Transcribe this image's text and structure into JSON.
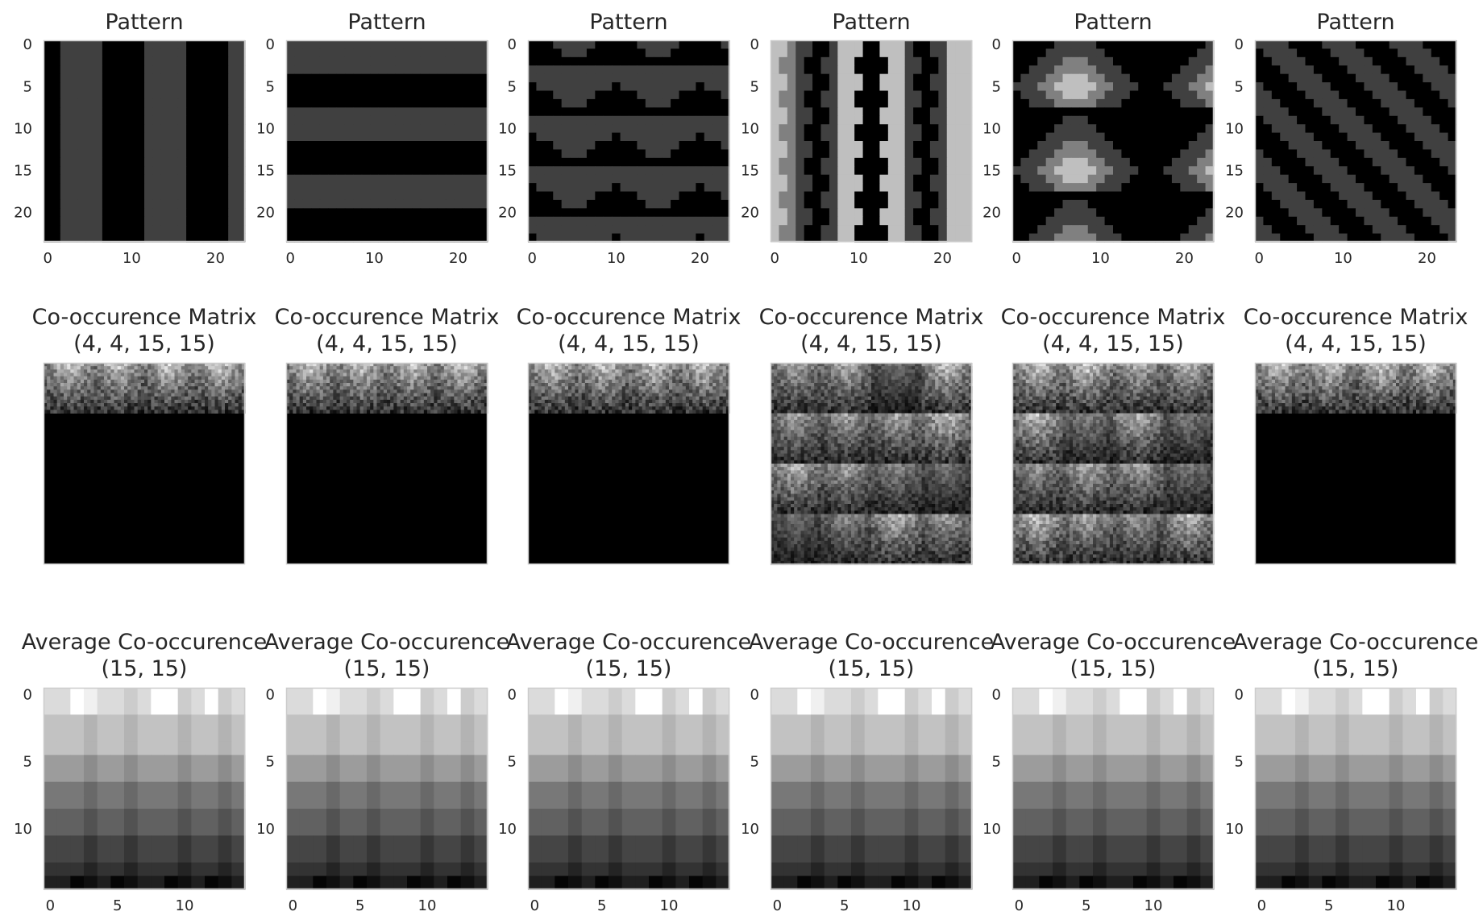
{
  "figure": {
    "rows": [
      {
        "titles": [
          [
            "Pattern"
          ],
          [
            "Pattern"
          ],
          [
            "Pattern"
          ],
          [
            "Pattern"
          ],
          [
            "Pattern"
          ],
          [
            "Pattern"
          ]
        ],
        "xticks": [
          [
            0,
            10,
            20
          ],
          [
            0,
            10,
            20
          ],
          [
            0,
            10,
            20
          ],
          [
            0,
            10,
            20
          ],
          [
            0,
            10,
            20
          ],
          [
            0,
            10,
            20
          ]
        ],
        "yticks": [
          [
            0,
            5,
            10,
            15,
            20
          ],
          [
            0,
            5,
            10,
            15,
            20
          ],
          [
            0,
            5,
            10,
            15,
            20
          ],
          [
            0,
            5,
            10,
            15,
            20
          ],
          [
            0,
            5,
            10,
            15,
            20
          ],
          [
            0,
            5,
            10,
            15,
            20
          ]
        ]
      },
      {
        "titles": [
          [
            "Co-occurence Matrix",
            "(4, 4, 15, 15)"
          ],
          [
            "Co-occurence Matrix",
            "(4, 4, 15, 15)"
          ],
          [
            "Co-occurence Matrix",
            "(4, 4, 15, 15)"
          ],
          [
            "Co-occurence Matrix",
            "(4, 4, 15, 15)"
          ],
          [
            "Co-occurence Matrix",
            "(4, 4, 15, 15)"
          ],
          [
            "Co-occurence Matrix",
            "(4, 4, 15, 15)"
          ]
        ]
      },
      {
        "titles": [
          [
            "Average Co-occurence",
            "(15, 15)"
          ],
          [
            "Average Co-occurence",
            "(15, 15)"
          ],
          [
            "Average Co-occurence",
            "(15, 15)"
          ],
          [
            "Average Co-occurence",
            "(15, 15)"
          ],
          [
            "Average Co-occurence",
            "(15, 15)"
          ],
          [
            "Average Co-occurence",
            "(15, 15)"
          ]
        ],
        "xticks": [
          [
            0,
            5,
            10
          ],
          [
            0,
            5,
            10
          ],
          [
            0,
            5,
            10
          ],
          [
            0,
            5,
            10
          ],
          [
            0,
            5,
            10
          ],
          [
            0,
            5,
            10
          ]
        ],
        "yticks": [
          [
            0,
            5,
            10
          ],
          [
            0,
            5,
            10
          ],
          [
            0,
            5,
            10
          ],
          [
            0,
            5,
            10
          ],
          [
            0,
            5,
            10
          ],
          [
            0,
            5,
            10
          ]
        ]
      }
    ]
  },
  "chart_data": [
    {
      "type": "heatmap",
      "row": 1,
      "col": 1,
      "title": "Pattern",
      "shape": [
        24,
        24
      ],
      "pattern": "vertical-stripes",
      "levels": [
        0,
        0.25
      ],
      "xlim": [
        0,
        23
      ],
      "ylim": [
        0,
        23
      ]
    },
    {
      "type": "heatmap",
      "row": 1,
      "col": 2,
      "title": "Pattern",
      "shape": [
        24,
        24
      ],
      "pattern": "horizontal-stripes",
      "levels": [
        0,
        0.25
      ],
      "xlim": [
        0,
        23
      ],
      "ylim": [
        0,
        23
      ]
    },
    {
      "type": "heatmap",
      "row": 1,
      "col": 3,
      "title": "Pattern",
      "shape": [
        24,
        24
      ],
      "pattern": "blob-lattice",
      "levels": [
        0,
        0.25
      ],
      "xlim": [
        0,
        23
      ],
      "ylim": [
        0,
        23
      ]
    },
    {
      "type": "heatmap",
      "row": 1,
      "col": 4,
      "title": "Pattern",
      "shape": [
        24,
        24
      ],
      "pattern": "vertical-gradient-bands",
      "levels": [
        0,
        0.25,
        0.5,
        0.75
      ],
      "xlim": [
        0,
        23
      ],
      "ylim": [
        0,
        23
      ]
    },
    {
      "type": "heatmap",
      "row": 1,
      "col": 5,
      "title": "Pattern",
      "shape": [
        24,
        24
      ],
      "pattern": "diamond-rings",
      "levels": [
        0,
        0.25,
        0.5,
        0.75
      ],
      "xlim": [
        0,
        23
      ],
      "ylim": [
        0,
        23
      ]
    },
    {
      "type": "heatmap",
      "row": 1,
      "col": 6,
      "title": "Pattern",
      "shape": [
        24,
        24
      ],
      "pattern": "diagonal-stripes",
      "levels": [
        0,
        0.25
      ],
      "xlim": [
        0,
        23
      ],
      "ylim": [
        0,
        23
      ]
    },
    {
      "type": "heatmap",
      "row": 2,
      "col": 1,
      "title": "Co-occurence Matrix (4, 4, 15, 15)",
      "shape": [
        4,
        4,
        15,
        15
      ],
      "pattern": "two-level",
      "nonzero_block_rows": 1
    },
    {
      "type": "heatmap",
      "row": 2,
      "col": 2,
      "title": "Co-occurence Matrix (4, 4, 15, 15)",
      "shape": [
        4,
        4,
        15,
        15
      ],
      "pattern": "two-level",
      "nonzero_block_rows": 1
    },
    {
      "type": "heatmap",
      "row": 2,
      "col": 3,
      "title": "Co-occurence Matrix (4, 4, 15, 15)",
      "shape": [
        4,
        4,
        15,
        15
      ],
      "pattern": "two-level",
      "nonzero_block_rows": 1
    },
    {
      "type": "heatmap",
      "row": 2,
      "col": 4,
      "title": "Co-occurence Matrix (4, 4, 15, 15)",
      "shape": [
        4,
        4,
        15,
        15
      ],
      "pattern": "four-level",
      "nonzero_block_rows": 4
    },
    {
      "type": "heatmap",
      "row": 2,
      "col": 5,
      "title": "Co-occurence Matrix (4, 4, 15, 15)",
      "shape": [
        4,
        4,
        15,
        15
      ],
      "pattern": "four-level",
      "nonzero_block_rows": 4
    },
    {
      "type": "heatmap",
      "row": 2,
      "col": 6,
      "title": "Co-occurence Matrix (4, 4, 15, 15)",
      "shape": [
        4,
        4,
        15,
        15
      ],
      "pattern": "two-level",
      "nonzero_block_rows": 1
    },
    {
      "type": "heatmap",
      "row": 3,
      "col": 1,
      "title": "Average Co-occurence (15, 15)",
      "shape": [
        15,
        15
      ],
      "pattern": "average",
      "xlim": [
        0,
        14
      ],
      "ylim": [
        0,
        14
      ]
    },
    {
      "type": "heatmap",
      "row": 3,
      "col": 2,
      "title": "Average Co-occurence (15, 15)",
      "shape": [
        15,
        15
      ],
      "pattern": "average",
      "xlim": [
        0,
        14
      ],
      "ylim": [
        0,
        14
      ]
    },
    {
      "type": "heatmap",
      "row": 3,
      "col": 3,
      "title": "Average Co-occurence (15, 15)",
      "shape": [
        15,
        15
      ],
      "pattern": "average",
      "xlim": [
        0,
        14
      ],
      "ylim": [
        0,
        14
      ]
    },
    {
      "type": "heatmap",
      "row": 3,
      "col": 4,
      "title": "Average Co-occurence (15, 15)",
      "shape": [
        15,
        15
      ],
      "pattern": "average",
      "xlim": [
        0,
        14
      ],
      "ylim": [
        0,
        14
      ]
    },
    {
      "type": "heatmap",
      "row": 3,
      "col": 5,
      "title": "Average Co-occurence (15, 15)",
      "shape": [
        15,
        15
      ],
      "pattern": "average",
      "xlim": [
        0,
        14
      ],
      "ylim": [
        0,
        14
      ]
    },
    {
      "type": "heatmap",
      "row": 3,
      "col": 6,
      "title": "Average Co-occurence (15, 15)",
      "shape": [
        15,
        15
      ],
      "pattern": "average",
      "xlim": [
        0,
        14
      ],
      "ylim": [
        0,
        14
      ]
    }
  ]
}
